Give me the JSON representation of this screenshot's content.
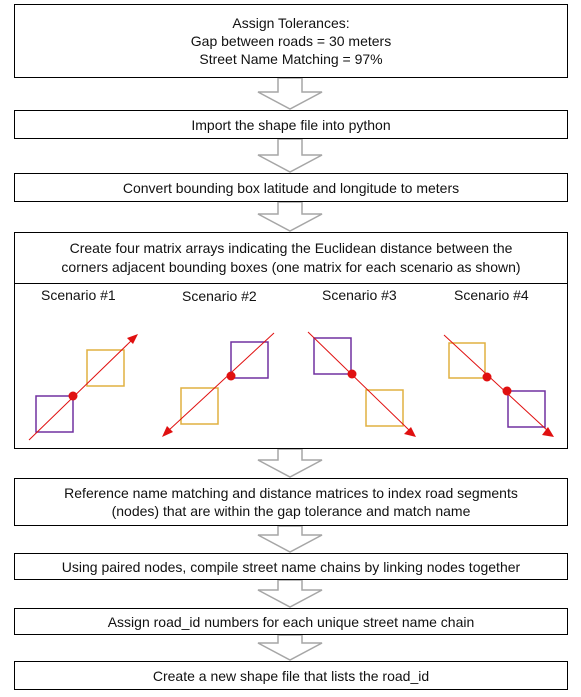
{
  "steps": {
    "tolerances": {
      "title": "Assign Tolerances:",
      "line1": "Gap between roads = 30 meters",
      "line2": "Street Name Matching = 97%"
    },
    "import": "Import the shape file into python",
    "convert": "Convert bounding box latitude and longitude to meters",
    "matrix": {
      "line1": "Create four matrix arrays indicating the Euclidean distance between the",
      "line2": "corners adjacent bounding boxes (one matrix for each scenario as shown)"
    },
    "reference": {
      "line1": "Reference name matching and distance matrices to index road segments",
      "line2": "(nodes) that are within the gap tolerance and match name"
    },
    "compile": "Using paired nodes, compile street name chains by linking  nodes together",
    "assign": "Assign road_id numbers for each unique street name chain",
    "create": "Create a new shape file that lists the road_id"
  },
  "scenarios": [
    "Scenario #1",
    "Scenario #2",
    "Scenario #3",
    "Scenario #4"
  ],
  "colors": {
    "purple": "#7030a0",
    "gold": "#e0b040",
    "red": "#e01010",
    "arrow_gray": "#a6a6a6"
  }
}
